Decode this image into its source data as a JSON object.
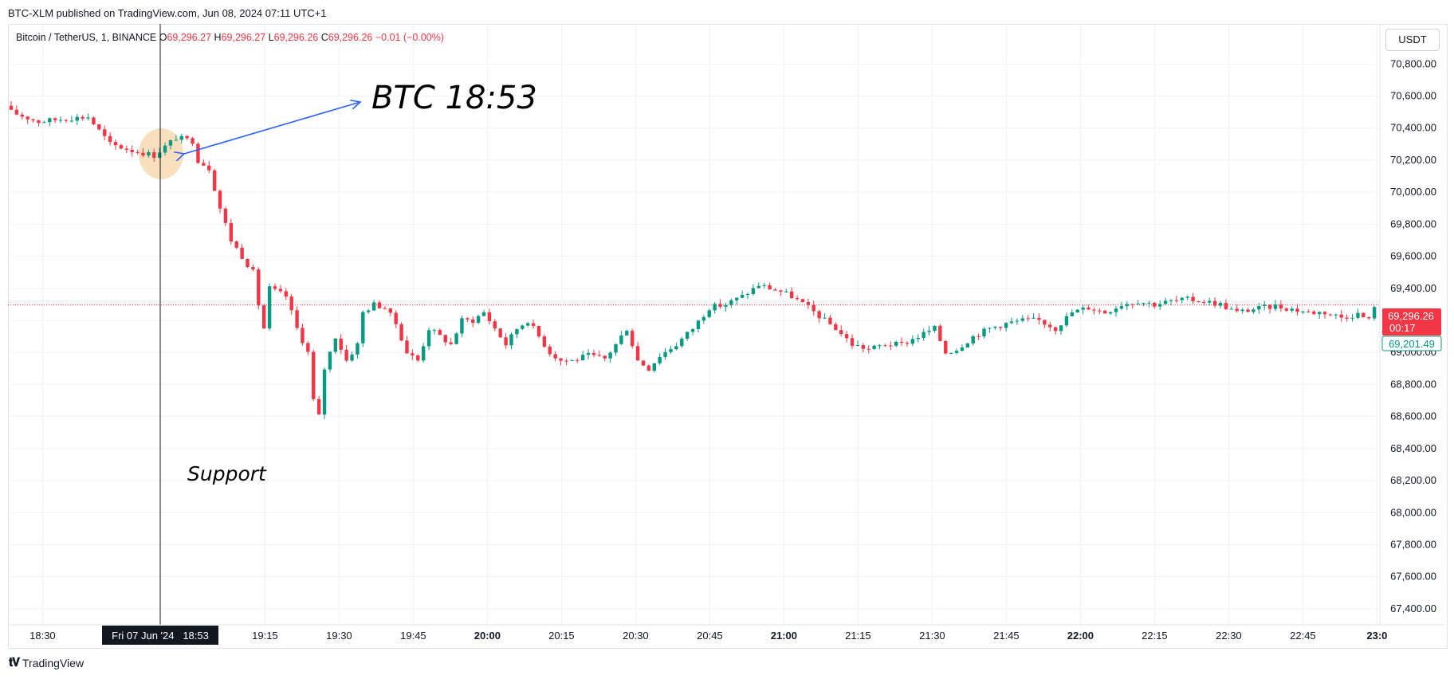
{
  "header": {
    "published_text": "BTC-XLM published on TradingView.com, Jun 08, 2024 07:11 UTC+1"
  },
  "legend": {
    "symbol": "Bitcoin / TetherUS, 1, BINANCE",
    "o_label": "O",
    "o_value": "69,296.27",
    "h_label": "H",
    "h_value": "69,296.27",
    "l_label": "L",
    "l_value": "69,296.26",
    "c_label": "C",
    "c_value": "69,296.26",
    "change": "−0.01 (−0.00%)"
  },
  "currency_button": "USDT",
  "colors": {
    "up": "#089981",
    "down": "#f23645",
    "grid": "#f0f3fa",
    "highlight": "#f5d6a8",
    "arrow": "#2962ff",
    "price_line": "#f23645"
  },
  "annotations": {
    "arrow_text": "BTC 18:53",
    "support_text": "Support"
  },
  "price_axis": {
    "last_price": "69,296.26",
    "countdown": "00:17",
    "second_price": "69,201.49"
  },
  "time_axis": {
    "crosshair_label": "Fri 07 Jun '24   18:53"
  },
  "footer": {
    "brand": "TradingView"
  },
  "chart_data": {
    "type": "candlestick",
    "title": "Bitcoin / TetherUS, 1, BINANCE",
    "interval": "1 minute",
    "ylim": [
      67300,
      71050
    ],
    "y_ticks": [
      "70,800.00",
      "70,600.00",
      "70,400.00",
      "70,200.00",
      "70,000.00",
      "69,800.00",
      "69,600.00",
      "69,400.00",
      "69,200.00",
      "69,000.00",
      "68,800.00",
      "68,600.00",
      "68,400.00",
      "68,200.00",
      "68,000.00",
      "67,800.00",
      "67,600.00",
      "67,400.00"
    ],
    "x_ticks": [
      {
        "label": "18:30",
        "bold": false
      },
      {
        "label": "19:15",
        "bold": false
      },
      {
        "label": "19:30",
        "bold": false
      },
      {
        "label": "19:45",
        "bold": false
      },
      {
        "label": "20:00",
        "bold": true
      },
      {
        "label": "20:15",
        "bold": false
      },
      {
        "label": "20:30",
        "bold": false
      },
      {
        "label": "20:45",
        "bold": false
      },
      {
        "label": "21:00",
        "bold": true
      },
      {
        "label": "21:15",
        "bold": false
      },
      {
        "label": "21:30",
        "bold": false
      },
      {
        "label": "21:45",
        "bold": false
      },
      {
        "label": "22:00",
        "bold": true
      },
      {
        "label": "22:15",
        "bold": false
      },
      {
        "label": "22:30",
        "bold": false
      },
      {
        "label": "22:45",
        "bold": false
      },
      {
        "label": "23:0",
        "bold": true
      }
    ],
    "time_start": "18:23",
    "time_end": "23:00",
    "crosshair_time": "18:53",
    "last_price": 69296.26,
    "second_price": 69201.49,
    "anchor_close": [
      [
        0,
        70500
      ],
      [
        5,
        70440
      ],
      [
        10,
        70460
      ],
      [
        14,
        70470
      ],
      [
        18,
        70300
      ],
      [
        22,
        70260
      ],
      [
        26,
        70230
      ],
      [
        30,
        70340
      ],
      [
        33,
        70320
      ],
      [
        34,
        70200
      ],
      [
        36,
        70150
      ],
      [
        38,
        69900
      ],
      [
        40,
        69700
      ],
      [
        42,
        69600
      ],
      [
        44,
        69500
      ],
      [
        45,
        69300
      ],
      [
        46,
        69150
      ],
      [
        47,
        69400
      ],
      [
        50,
        69350
      ],
      [
        52,
        69150
      ],
      [
        54,
        69000
      ],
      [
        55,
        68700
      ],
      [
        56,
        68600
      ],
      [
        57,
        68900
      ],
      [
        59,
        69100
      ],
      [
        61,
        68950
      ],
      [
        63,
        69050
      ],
      [
        64,
        69250
      ],
      [
        66,
        69300
      ],
      [
        68,
        69280
      ],
      [
        70,
        69180
      ],
      [
        72,
        69000
      ],
      [
        74,
        68950
      ],
      [
        76,
        69150
      ],
      [
        78,
        69100
      ],
      [
        80,
        69050
      ],
      [
        82,
        69200
      ],
      [
        84,
        69200
      ],
      [
        86,
        69250
      ],
      [
        88,
        69150
      ],
      [
        90,
        69050
      ],
      [
        92,
        69150
      ],
      [
        94,
        69200
      ],
      [
        96,
        69100
      ],
      [
        98,
        69000
      ],
      [
        100,
        68950
      ],
      [
        102,
        68950
      ],
      [
        105,
        68980
      ],
      [
        108,
        68960
      ],
      [
        110,
        69050
      ],
      [
        112,
        69150
      ],
      [
        114,
        68950
      ],
      [
        116,
        68900
      ],
      [
        118,
        68980
      ],
      [
        121,
        69050
      ],
      [
        124,
        69150
      ],
      [
        127,
        69280
      ],
      [
        130,
        69300
      ],
      [
        133,
        69350
      ],
      [
        136,
        69420
      ],
      [
        138,
        69400
      ],
      [
        140,
        69380
      ],
      [
        142,
        69350
      ],
      [
        145,
        69280
      ],
      [
        148,
        69200
      ],
      [
        150,
        69150
      ],
      [
        153,
        69050
      ],
      [
        156,
        69020
      ],
      [
        159,
        69050
      ],
      [
        162,
        69050
      ],
      [
        165,
        69100
      ],
      [
        168,
        69150
      ],
      [
        170,
        69000
      ],
      [
        172,
        69020
      ],
      [
        175,
        69100
      ],
      [
        178,
        69150
      ],
      [
        181,
        69180
      ],
      [
        184,
        69200
      ],
      [
        187,
        69200
      ],
      [
        190,
        69150
      ],
      [
        193,
        69250
      ],
      [
        196,
        69280
      ],
      [
        199,
        69250
      ],
      [
        202,
        69300
      ],
      [
        205,
        69320
      ],
      [
        208,
        69300
      ],
      [
        211,
        69320
      ],
      [
        214,
        69330
      ],
      [
        217,
        69320
      ],
      [
        220,
        69300
      ],
      [
        223,
        69250
      ],
      [
        226,
        69270
      ],
      [
        230,
        69290
      ],
      [
        233,
        69270
      ],
      [
        236,
        69250
      ],
      [
        239,
        69250
      ],
      [
        242,
        69220
      ],
      [
        245,
        69240
      ],
      [
        247,
        69201
      ],
      [
        248,
        69296
      ]
    ]
  }
}
